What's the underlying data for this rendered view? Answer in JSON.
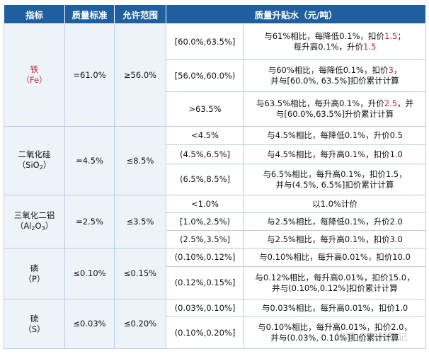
{
  "headers": {
    "indicator": "指标",
    "standard": "质量标准",
    "allowed": "允许范围",
    "adjustment": "质量升贴水（元/吨）"
  },
  "groups": [
    {
      "name": "铁",
      "symbol": "（Fe）",
      "standard": "=61.0%",
      "allowed": "≥56.0%",
      "rows": [
        {
          "range": "[60.0%,63.5%]",
          "line1": "与61%相比，每降低0.1%，扣价",
          "line1_num": "1.5",
          "line1_tail": "；",
          "line2": "每升高0.1%，升价",
          "line2_num": "1.5",
          "line2_tail": ""
        },
        {
          "range": "[56.0%,60.0%)",
          "line1": "与60%相比，每降低0.1%，扣价",
          "line1_num": "3",
          "line1_tail": "，",
          "line2": "并与[60.0%, 63.5%]扣价累计计算",
          "line2_num": "",
          "line2_tail": ""
        },
        {
          "range": ">63.5%",
          "line1": "与63.5%相比，每升高0.1%，升价",
          "line1_num": "2.5",
          "line1_tail": "，并",
          "line2": "与[60.0%,63.5%]升价累计计算",
          "line2_num": "",
          "line2_tail": ""
        }
      ]
    },
    {
      "name": "二氧化硅",
      "symbol_pre": "（SiO",
      "symbol_sub": "2",
      "symbol_post": "）",
      "standard": "=4.5%",
      "allowed": "≤8.5%",
      "rows": [
        {
          "range": "<4.5%",
          "line1": "与4.5%相比，每降低0.1%，升价0.5",
          "line2": ""
        },
        {
          "range": "(4.5%,6.5%]",
          "line1": "与4.5%相比，每升高0.1%，扣价1.0",
          "line2": ""
        },
        {
          "range": "(6.5%,8.5%]",
          "line1": "与6.5%相比，每升高0.1%，扣价1.5，",
          "line2": "并与(4.5%, 6.5%]扣价累计计算"
        }
      ]
    },
    {
      "name": "三氧化二铝",
      "symbol_pre": "（Al",
      "symbol_sub": "2",
      "symbol_mid": "O",
      "symbol_sub2": "3",
      "symbol_post": "）",
      "standard": "=2.5%",
      "allowed": "≤3.5%",
      "rows": [
        {
          "range": "<1.0%",
          "line1": "以1.0%计价",
          "line2": ""
        },
        {
          "range": "[1.0%,2.5%)",
          "line1": "与2.5%相比，每降低0.1%，升价2.0",
          "line2": ""
        },
        {
          "range": "(2.5%,3.5%]",
          "line1": "与2.5%相比，每升高0.1%，扣价3.0",
          "line2": ""
        }
      ]
    },
    {
      "name": "磷",
      "symbol": "（P）",
      "standard": "≤0.10%",
      "allowed": "≤0.15%",
      "rows": [
        {
          "range": "(0.10%,0.12%]",
          "line1": "与0.10%相比，每升高0.01%，扣价10.0",
          "line2": ""
        },
        {
          "range": "(0.12%,0.15%]",
          "line1": "与0.12%相比，每升高0.01%，扣价15.0，",
          "line2": "并与(0.10%,0.12%]扣价累计计算"
        }
      ]
    },
    {
      "name": "硫",
      "symbol": "（S）",
      "standard": "≤0.03%",
      "allowed": "≤0.20%",
      "rows": [
        {
          "range": "(0.03%,0.10%]",
          "line1": "与0.03%相比，每升高0.01%，扣价1.0",
          "line2": ""
        },
        {
          "range": "(0.10%,0.20%]",
          "line1": "与0.10%相比，每升高0.01%，扣价2.0，",
          "line2": "并与(0.03%, 0.10%]扣价累计计算"
        }
      ]
    }
  ],
  "watermark": "知乎 @炒股笔记"
}
